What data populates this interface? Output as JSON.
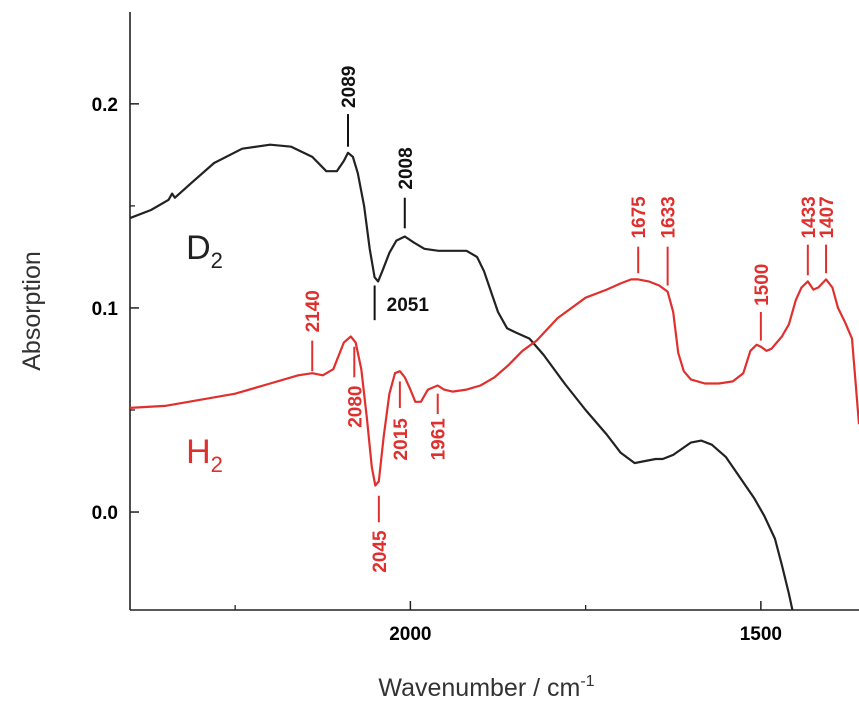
{
  "chart_data": {
    "type": "line",
    "xlabel": "Wavenumber / cm",
    "xlabel_sup": "-1",
    "ylabel": "Absorption",
    "xlim": [
      2400,
      1360
    ],
    "ylim": [
      -0.048,
      0.245
    ],
    "x_reversed": true,
    "x_ticks": [
      2000,
      1500
    ],
    "x_minor_ticks": [
      2250,
      1750
    ],
    "y_ticks": [
      {
        "value": 0.0,
        "label": "0.0"
      },
      {
        "value": 0.1,
        "label": "0.1"
      },
      {
        "value": 0.2,
        "label": "0.2"
      }
    ],
    "y_minor_ticks": [
      0.05,
      0.15
    ],
    "grid": false,
    "series": [
      {
        "name": "D",
        "name_sub": "2",
        "color": "#222222",
        "points": [
          [
            2400,
            0.144
          ],
          [
            2370,
            0.148
          ],
          [
            2345,
            0.153
          ],
          [
            2340,
            0.156
          ],
          [
            2336,
            0.154
          ],
          [
            2310,
            0.162
          ],
          [
            2280,
            0.171
          ],
          [
            2240,
            0.178
          ],
          [
            2200,
            0.18
          ],
          [
            2170,
            0.179
          ],
          [
            2140,
            0.174
          ],
          [
            2120,
            0.167
          ],
          [
            2105,
            0.167
          ],
          [
            2095,
            0.172
          ],
          [
            2089,
            0.176
          ],
          [
            2082,
            0.174
          ],
          [
            2075,
            0.166
          ],
          [
            2066,
            0.15
          ],
          [
            2058,
            0.129
          ],
          [
            2051,
            0.115
          ],
          [
            2046,
            0.113
          ],
          [
            2040,
            0.118
          ],
          [
            2030,
            0.127
          ],
          [
            2020,
            0.133
          ],
          [
            2008,
            0.135
          ],
          [
            1995,
            0.132
          ],
          [
            1980,
            0.129
          ],
          [
            1960,
            0.128
          ],
          [
            1940,
            0.128
          ],
          [
            1920,
            0.128
          ],
          [
            1905,
            0.125
          ],
          [
            1895,
            0.118
          ],
          [
            1885,
            0.108
          ],
          [
            1875,
            0.098
          ],
          [
            1862,
            0.09
          ],
          [
            1850,
            0.088
          ],
          [
            1830,
            0.085
          ],
          [
            1810,
            0.077
          ],
          [
            1780,
            0.063
          ],
          [
            1750,
            0.05
          ],
          [
            1720,
            0.038
          ],
          [
            1700,
            0.029
          ],
          [
            1680,
            0.024
          ],
          [
            1665,
            0.025
          ],
          [
            1650,
            0.026
          ],
          [
            1640,
            0.026
          ],
          [
            1625,
            0.028
          ],
          [
            1600,
            0.034
          ],
          [
            1585,
            0.035
          ],
          [
            1570,
            0.033
          ],
          [
            1550,
            0.027
          ],
          [
            1530,
            0.017
          ],
          [
            1510,
            0.007
          ],
          [
            1495,
            -0.002
          ],
          [
            1480,
            -0.013
          ],
          [
            1470,
            -0.026
          ],
          [
            1460,
            -0.04
          ],
          [
            1455,
            -0.048
          ]
        ]
      },
      {
        "name": "H",
        "name_sub": "2",
        "color": "#e0302e",
        "points": [
          [
            2400,
            0.051
          ],
          [
            2350,
            0.052
          ],
          [
            2300,
            0.055
          ],
          [
            2250,
            0.058
          ],
          [
            2200,
            0.063
          ],
          [
            2160,
            0.067
          ],
          [
            2140,
            0.068
          ],
          [
            2125,
            0.067
          ],
          [
            2110,
            0.07
          ],
          [
            2095,
            0.083
          ],
          [
            2085,
            0.086
          ],
          [
            2078,
            0.083
          ],
          [
            2070,
            0.07
          ],
          [
            2062,
            0.046
          ],
          [
            2055,
            0.022
          ],
          [
            2050,
            0.013
          ],
          [
            2045,
            0.015
          ],
          [
            2038,
            0.037
          ],
          [
            2030,
            0.058
          ],
          [
            2022,
            0.068
          ],
          [
            2015,
            0.069
          ],
          [
            2008,
            0.066
          ],
          [
            2000,
            0.06
          ],
          [
            1993,
            0.054
          ],
          [
            1985,
            0.054
          ],
          [
            1975,
            0.06
          ],
          [
            1961,
            0.062
          ],
          [
            1952,
            0.06
          ],
          [
            1940,
            0.059
          ],
          [
            1920,
            0.06
          ],
          [
            1900,
            0.062
          ],
          [
            1880,
            0.066
          ],
          [
            1860,
            0.072
          ],
          [
            1840,
            0.079
          ],
          [
            1820,
            0.084
          ],
          [
            1790,
            0.095
          ],
          [
            1750,
            0.105
          ],
          [
            1720,
            0.109
          ],
          [
            1700,
            0.112
          ],
          [
            1685,
            0.114
          ],
          [
            1675,
            0.114
          ],
          [
            1660,
            0.113
          ],
          [
            1645,
            0.111
          ],
          [
            1633,
            0.108
          ],
          [
            1625,
            0.098
          ],
          [
            1618,
            0.078
          ],
          [
            1610,
            0.069
          ],
          [
            1600,
            0.065
          ],
          [
            1580,
            0.063
          ],
          [
            1560,
            0.063
          ],
          [
            1540,
            0.064
          ],
          [
            1525,
            0.068
          ],
          [
            1515,
            0.079
          ],
          [
            1506,
            0.082
          ],
          [
            1500,
            0.081
          ],
          [
            1492,
            0.079
          ],
          [
            1485,
            0.08
          ],
          [
            1470,
            0.086
          ],
          [
            1460,
            0.092
          ],
          [
            1450,
            0.104
          ],
          [
            1442,
            0.11
          ],
          [
            1433,
            0.113
          ],
          [
            1425,
            0.109
          ],
          [
            1418,
            0.11
          ],
          [
            1407,
            0.114
          ],
          [
            1398,
            0.11
          ],
          [
            1390,
            0.1
          ],
          [
            1380,
            0.093
          ],
          [
            1370,
            0.085
          ],
          [
            1360,
            0.043
          ]
        ]
      }
    ],
    "annotations": [
      {
        "text": "2089",
        "color": "#111111",
        "peak_x": 2089,
        "line_y0": 0.179,
        "line_y1": 0.195,
        "label_y": 0.198,
        "label_dx": 0
      },
      {
        "text": "2008",
        "color": "#111111",
        "peak_x": 2008,
        "line_y0": 0.139,
        "line_y1": 0.154,
        "label_y": 0.158,
        "label_dx": 0
      },
      {
        "text": "2140",
        "color": "#e0302e",
        "peak_x": 2140,
        "line_y0": 0.069,
        "line_y1": 0.084,
        "label_y": 0.088,
        "label_dx": 0
      },
      {
        "text": "1675",
        "color": "#e0302e",
        "peak_x": 1675,
        "line_y0": 0.117,
        "line_y1": 0.13,
        "label_y": 0.134,
        "label_dx": 0
      },
      {
        "text": "1633",
        "color": "#e0302e",
        "peak_x": 1633,
        "line_y0": 0.111,
        "line_y1": 0.13,
        "label_y": 0.134,
        "label_dx": 0
      },
      {
        "text": "1500",
        "color": "#e0302e",
        "peak_x": 1500,
        "line_y0": 0.084,
        "line_y1": 0.098,
        "label_y": 0.101,
        "label_dx": 0
      },
      {
        "text": "1433",
        "color": "#e0302e",
        "peak_x": 1433,
        "line_y0": 0.116,
        "line_y1": 0.131,
        "label_y": 0.134,
        "label_dx": 0
      },
      {
        "text": "1407",
        "color": "#e0302e",
        "peak_x": 1407,
        "line_y0": 0.117,
        "line_y1": 0.131,
        "label_y": 0.134,
        "label_dx": 0
      }
    ],
    "annotations_below": [
      {
        "text": "2051",
        "color": "#111111",
        "peak_x": 2051,
        "line_y0": 0.111,
        "line_y1": 0.094,
        "label_y": 0.102
      },
      {
        "text": "2080",
        "color": "#e0302e",
        "peak_x": 2080,
        "line_y0": 0.081,
        "line_y1": 0.066,
        "label_y": 0.062
      },
      {
        "text": "2015",
        "color": "#e0302e",
        "peak_x": 2015,
        "line_y0": 0.064,
        "line_y1": 0.051,
        "label_y": 0.046
      },
      {
        "text": "1961",
        "color": "#e0302e",
        "peak_x": 1961,
        "line_y0": 0.058,
        "line_y1": 0.048,
        "label_y": 0.046
      },
      {
        "text": "2045",
        "color": "#e0302e",
        "peak_x": 2045,
        "line_y0": 0.008,
        "line_y1": -0.005,
        "label_y": -0.009
      }
    ],
    "series_labels": [
      {
        "series": 0,
        "x": 2320,
        "y": 0.124
      },
      {
        "series": 1,
        "x": 2320,
        "y": 0.024
      }
    ]
  }
}
